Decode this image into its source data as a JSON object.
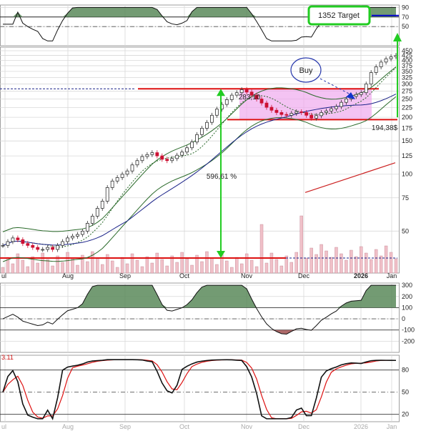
{
  "chart_data": [
    {
      "panel": "RSI",
      "type": "line",
      "ylim": [
        10,
        95
      ],
      "y_ticks": [
        "90",
        "70",
        "50"
      ],
      "annotation": "1352 Target",
      "hlines": [
        70,
        30
      ],
      "note": "oscillator line with green fill above 70"
    },
    {
      "panel": "price",
      "type": "candlestick",
      "scale": "log",
      "ylim": [
        30,
        470
      ],
      "y_ticks": [
        "450",
        "425",
        "400",
        "375",
        "350",
        "325",
        "300",
        "275",
        "250",
        "225",
        "200",
        "175",
        "150",
        "125",
        "100",
        "75",
        "50"
      ],
      "x_ticks": [
        "ul",
        "Aug",
        "Sep",
        "Oct",
        "Nov",
        "Dec",
        "2026",
        "Jan"
      ],
      "series": [
        {
          "name": "",
          "values_note": "price candles"
        },
        {
          "name": "",
          "values_note": "moving averages and Bollinger bands"
        }
      ],
      "closes": [
        42,
        44,
        46,
        45,
        43,
        42,
        41,
        40,
        40,
        41,
        40,
        42,
        44,
        46,
        47,
        48,
        50,
        55,
        60,
        66,
        72,
        85,
        92,
        96,
        100,
        104,
        112,
        118,
        124,
        127,
        130,
        125,
        120,
        118,
        121,
        126,
        131,
        138,
        148,
        162,
        175,
        188,
        205,
        221,
        234,
        248,
        262,
        270,
        280,
        272,
        262,
        250,
        238,
        226,
        218,
        212,
        207,
        205,
        210,
        214,
        212,
        205,
        198,
        204,
        212,
        216,
        222,
        228,
        240,
        250,
        258,
        264,
        270,
        300,
        345,
        370,
        392,
        408,
        418,
        425
      ],
      "annotations": {
        "resistance": "283,10",
        "support": "194,38$",
        "percent_move": "596,61 %",
        "buy_label": "Buy"
      },
      "hlines": [
        283.1,
        194.38,
        36
      ]
    },
    {
      "panel": "momentum",
      "type": "area",
      "ylim": [
        -300,
        320
      ],
      "y_ticks": [
        "300",
        "200",
        "100",
        "0",
        "-100",
        "-200"
      ],
      "hlines": [
        100,
        0,
        -100
      ]
    },
    {
      "panel": "stochastic",
      "type": "line",
      "ylim": [
        10,
        100
      ],
      "y_ticks": [
        "80",
        "50",
        "20"
      ],
      "label": "3.11",
      "series_names": [
        "",
        ""
      ]
    }
  ],
  "colors": {
    "bull": "#333333",
    "bear": "#cc1133",
    "pinkbox": "#f0aaee",
    "green": "#22cc22",
    "red_line": "#dd1111",
    "navy": "#1a2288",
    "area": "#5a8a5a",
    "area_neg": "#a05050",
    "volume": "#f0c0c8",
    "grid": "#d8d8d8"
  }
}
